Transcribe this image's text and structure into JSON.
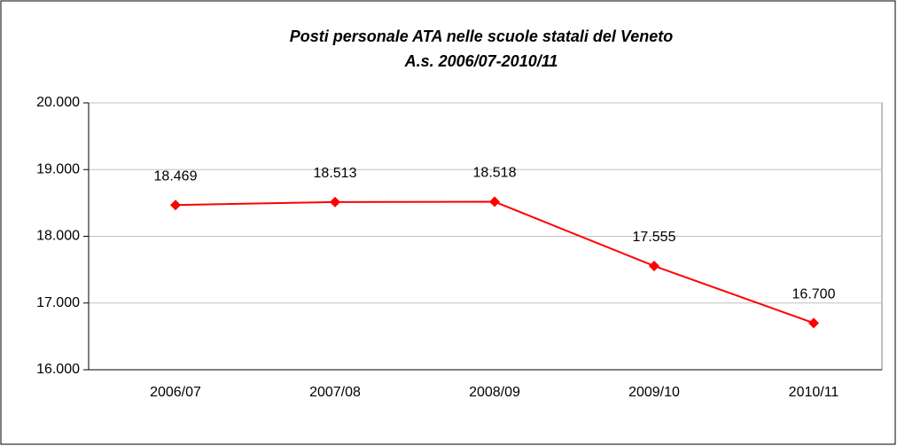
{
  "chart_data": {
    "type": "line",
    "title": "Posti personale ATA nelle scuole statali del Veneto",
    "subtitle": "A.s. 2006/07-2010/11",
    "categories": [
      "2006/07",
      "2007/08",
      "2008/09",
      "2009/10",
      "2010/11"
    ],
    "series": [
      {
        "name": "Posti personale ATA",
        "color": "#ff0000",
        "values": [
          18469,
          18513,
          18518,
          17555,
          16700
        ],
        "value_labels": [
          "18.469",
          "18.513",
          "18.518",
          "17.555",
          "16.700"
        ]
      }
    ],
    "ylim": [
      16000,
      20000
    ],
    "yticks": [
      {
        "value": 16000,
        "label": "16.000"
      },
      {
        "value": 17000,
        "label": "17.000"
      },
      {
        "value": 18000,
        "label": "18.000"
      },
      {
        "value": 19000,
        "label": "19.000"
      },
      {
        "value": 20000,
        "label": "20.000"
      }
    ],
    "grid": true
  }
}
